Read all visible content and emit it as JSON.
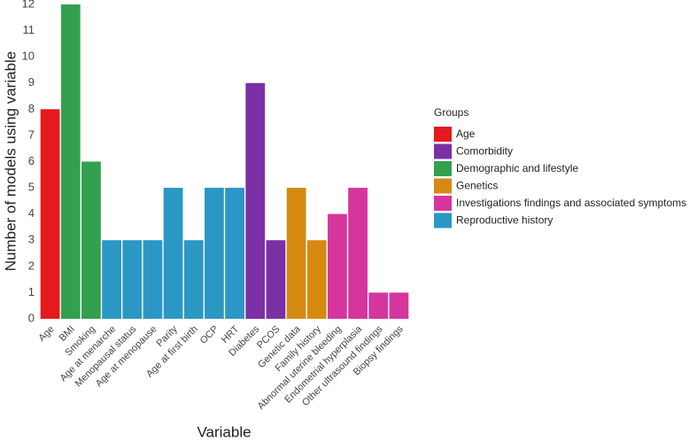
{
  "chart_data": {
    "type": "bar",
    "x_label": "Variable",
    "y_label": "Number of models using variable",
    "legend_title": "Groups",
    "categories": [
      "Age",
      "BMI",
      "Smoking",
      "Age at menarche",
      "Menopausal status",
      "Age at menopause",
      "Parity",
      "Age at first birth",
      "OCP",
      "HRT",
      "Diabetes",
      "PCOS",
      "Genetic data",
      "Family history",
      "Abnormal uterine bleeding",
      "Endometrial hyperplasia",
      "Other ultrasound findings",
      "Biopsy findings"
    ],
    "series": [
      {
        "name": "Age",
        "color": "#e41a1c",
        "values": [
          8,
          null,
          null,
          null,
          null,
          null,
          null,
          null,
          null,
          null,
          null,
          null,
          null,
          null,
          null,
          null,
          null,
          null
        ]
      },
      {
        "name": "Comorbidity",
        "color": "#7b30a5",
        "values": [
          null,
          null,
          null,
          null,
          null,
          null,
          null,
          null,
          null,
          null,
          9,
          3,
          null,
          null,
          null,
          null,
          null,
          null
        ]
      },
      {
        "name": "Demographic and lifestyle",
        "color": "#33a04f",
        "values": [
          null,
          12,
          6,
          null,
          null,
          null,
          null,
          null,
          null,
          null,
          null,
          null,
          null,
          null,
          null,
          null,
          null,
          null
        ]
      },
      {
        "name": "Genetics",
        "color": "#d68a12",
        "values": [
          null,
          null,
          null,
          null,
          null,
          null,
          null,
          null,
          null,
          null,
          null,
          null,
          5,
          3,
          null,
          null,
          null,
          null
        ]
      },
      {
        "name": "Investigations findings and associated symptoms",
        "color": "#d6359e",
        "values": [
          null,
          null,
          null,
          null,
          null,
          null,
          null,
          null,
          null,
          null,
          null,
          null,
          null,
          null,
          4,
          5,
          1,
          1
        ]
      },
      {
        "name": "Reproductive history",
        "color": "#2b97c4",
        "values": [
          null,
          null,
          null,
          3,
          3,
          3,
          5,
          3,
          5,
          5,
          null,
          null,
          null,
          null,
          null,
          null,
          null,
          null
        ]
      }
    ],
    "ylim": [
      0,
      12
    ],
    "yticks": [
      0,
      1,
      2,
      3,
      4,
      5,
      6,
      7,
      8,
      9,
      10,
      11,
      12
    ],
    "grid": false
  }
}
